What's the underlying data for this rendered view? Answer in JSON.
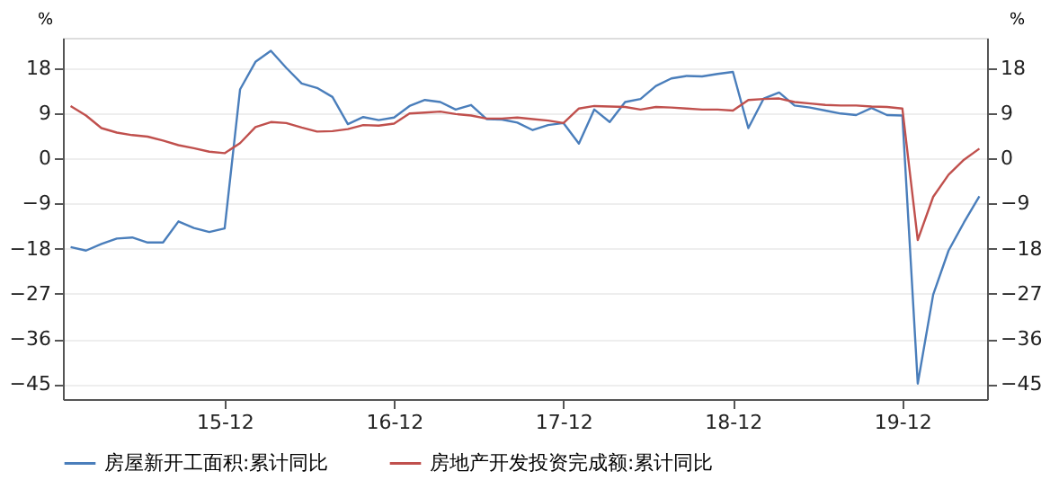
{
  "chart_data": {
    "type": "line",
    "categories": [
      null,
      null,
      null,
      null,
      null,
      null,
      null,
      null,
      null,
      null,
      "15-12",
      null,
      null,
      null,
      null,
      null,
      null,
      null,
      null,
      null,
      null,
      "16-12",
      null,
      null,
      null,
      null,
      null,
      null,
      null,
      null,
      null,
      null,
      "17-12",
      null,
      null,
      null,
      null,
      null,
      null,
      null,
      null,
      null,
      null,
      "18-12",
      null,
      null,
      null,
      null,
      null,
      null,
      null,
      null,
      null,
      null,
      "19-12",
      null,
      null,
      null,
      null,
      null
    ],
    "series": [
      {
        "name": "房屋新开工面积:累计同比",
        "color": "#4a7ebb",
        "values": [
          -17.7,
          -18.4,
          -17.1,
          -16.0,
          -15.8,
          -16.8,
          -16.8,
          -12.6,
          -13.9,
          -14.7,
          -14.0,
          13.7,
          19.2,
          21.4,
          18.0,
          14.9,
          14.0,
          12.2,
          6.8,
          8.2,
          7.6,
          8.1,
          10.4,
          11.6,
          11.2,
          9.7,
          10.6,
          7.8,
          7.7,
          7.1,
          5.6,
          6.6,
          7.0,
          2.9,
          9.7,
          7.2,
          11.2,
          11.8,
          14.4,
          15.9,
          16.4,
          16.3,
          16.8,
          17.2,
          6.0,
          11.9,
          13.1,
          10.5,
          10.1,
          9.5,
          8.9,
          8.6,
          10.0,
          8.6,
          8.5,
          -44.9,
          -27.2,
          -18.4,
          -12.8,
          -7.6
        ]
      },
      {
        "name": "房地产开发投资完成额:累计同比",
        "color": "#c0504d",
        "values": [
          10.4,
          8.5,
          6.0,
          5.1,
          4.6,
          4.3,
          3.5,
          2.6,
          2.0,
          1.3,
          1.0,
          3.0,
          6.2,
          7.2,
          7.0,
          6.1,
          5.3,
          5.4,
          5.8,
          6.6,
          6.5,
          6.9,
          8.9,
          9.1,
          9.3,
          8.8,
          8.5,
          7.9,
          7.9,
          8.1,
          7.8,
          7.5,
          7.0,
          9.9,
          10.4,
          10.3,
          10.2,
          9.7,
          10.2,
          10.1,
          9.9,
          9.7,
          9.7,
          9.5,
          11.6,
          11.8,
          11.9,
          11.2,
          10.9,
          10.6,
          10.5,
          10.5,
          10.3,
          10.2,
          9.9,
          -16.3,
          -7.7,
          -3.3,
          -0.3,
          1.9
        ]
      }
    ],
    "ylabel": "%",
    "y2label": "%",
    "ylim": [
      -48,
      24
    ],
    "yticks": [
      -45,
      -36,
      -27,
      -18,
      -9,
      0,
      9,
      18
    ],
    "y2lim": [
      -48,
      24
    ],
    "y2ticks": [
      -45,
      -36,
      -27,
      -18,
      -9,
      0,
      9,
      18
    ],
    "grid": "y",
    "legend": "bottom",
    "line_style": "solid",
    "marker": "none"
  }
}
